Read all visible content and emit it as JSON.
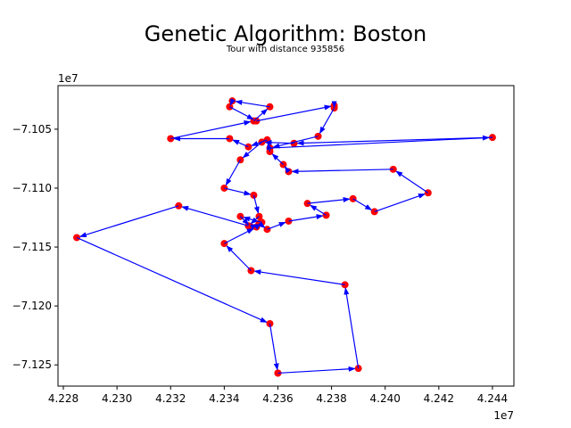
{
  "chart_data": {
    "type": "line",
    "title": "Genetic Algorithm: Boston",
    "subtitle": "Tour with distance 935856",
    "x_offset_label": "1e7",
    "y_offset_label": "1e7",
    "xlim": [
      4.2278,
      4.2448
    ],
    "ylim": [
      -7.1268,
      -7.1013
    ],
    "x_ticks": [
      4.228,
      4.23,
      4.232,
      4.234,
      4.236,
      4.238,
      4.24,
      4.242,
      4.244
    ],
    "x_tick_labels": [
      "4.228",
      "4.230",
      "4.232",
      "4.234",
      "4.236",
      "4.238",
      "4.240",
      "4.242",
      "4.244"
    ],
    "y_ticks": [
      -7.125,
      -7.12,
      -7.115,
      -7.11,
      -7.105
    ],
    "y_tick_labels": [
      "−7.125",
      "−7.120",
      "−7.115",
      "−7.110",
      "−7.105"
    ],
    "grid": false,
    "colors": {
      "path": "#0000ff",
      "points": "#ff0000"
    },
    "series": [
      {
        "x": [
          4.236,
          4.239,
          4.2385,
          4.235,
          4.234,
          4.2352,
          4.2354,
          4.2346,
          4.235,
          4.2353,
          4.2356,
          4.2364,
          4.2378,
          4.2371,
          4.2388,
          4.2396,
          4.2416,
          4.2403,
          4.2364,
          4.2362,
          4.2357,
          4.2356,
          4.2349,
          4.2342,
          4.232,
          4.2351,
          4.2357,
          4.2343,
          4.2342,
          4.2352,
          4.2381,
          4.2381,
          4.2375,
          4.2357,
          4.244,
          4.2366,
          4.2354,
          4.2346,
          4.234,
          4.2351,
          4.2353,
          4.2349,
          4.2323,
          4.2285,
          4.2357,
          4.236
        ],
        "y": [
          -7.1257,
          -7.1253,
          -7.1182,
          -7.117,
          -7.1147,
          -7.1133,
          -7.1129,
          -7.1124,
          -7.1133,
          -7.113,
          -7.1135,
          -7.1128,
          -7.1123,
          -7.1113,
          -7.1109,
          -7.112,
          -7.1104,
          -7.1084,
          -7.1086,
          -7.108,
          -7.1069,
          -7.1059,
          -7.1065,
          -7.1058,
          -7.1058,
          -7.1043,
          -7.1031,
          -7.1026,
          -7.1031,
          -7.1043,
          -7.103,
          -7.1032,
          -7.1056,
          -7.1066,
          -7.1057,
          -7.1062,
          -7.1061,
          -7.1076,
          -7.11,
          -7.1106,
          -7.1124,
          -7.1132,
          -7.1115,
          -7.1142,
          -7.1215,
          -7.1257
        ]
      }
    ]
  }
}
